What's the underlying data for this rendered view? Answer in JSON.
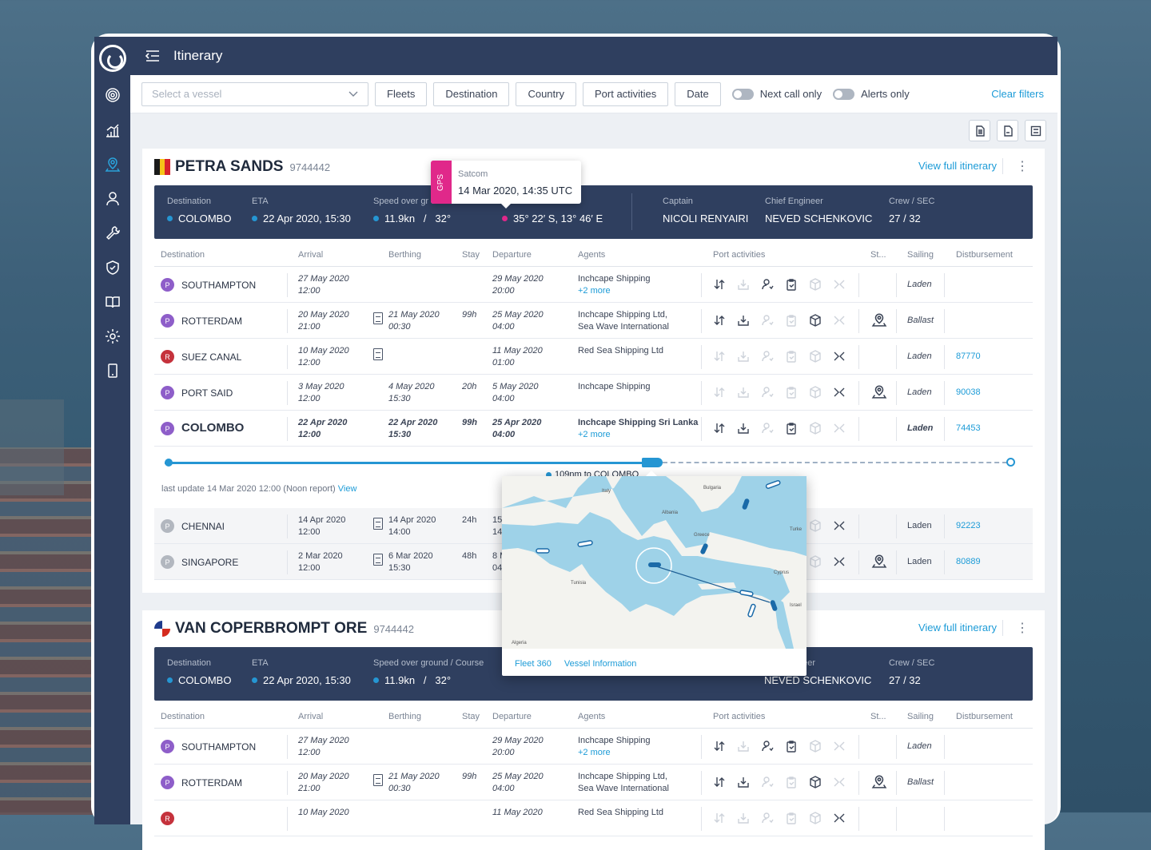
{
  "app": {
    "title": "Itinerary"
  },
  "filters": {
    "vessel_placeholder": "Select a vessel",
    "buttons": [
      "Fleets",
      "Destination",
      "Country",
      "Port activities",
      "Date"
    ],
    "toggles": [
      "Next call only",
      "Alerts only"
    ],
    "clear": "Clear filters"
  },
  "colors": {
    "navy": "#2f3f5f",
    "accent": "#1c9bd7",
    "gps": "#e0288a",
    "purple_badge": "#8e5ec9",
    "red_badge": "#c5323c"
  },
  "columns": [
    "Destination",
    "Arrival",
    "Berthing",
    "Stay",
    "Departure",
    "Agents",
    "Port activities",
    "St...",
    "Sailing",
    "Distbursement"
  ],
  "vessel1": {
    "name": "PETRA SANDS",
    "imo": "9744442",
    "flag": "belgium-flag",
    "view_full": "View full itinerary",
    "summary": {
      "destination_label": "Destination",
      "destination": "COLOMBO",
      "eta_label": "ETA",
      "eta": "22 Apr 2020, 15:30",
      "speed_label": "Speed over gr",
      "speed": "11.9kn",
      "sep": "/",
      "course": "32°",
      "position": "35° 22′ S, 13° 46′ E",
      "captain_label": "Captain",
      "captain": "NICOLI RENYAIRI",
      "chief_label": "Chief Engineer",
      "chief": "NEVED SCHENKOVIC",
      "crew_label": "Crew / SEC",
      "crew": "27 / 32"
    },
    "tooltip": {
      "badge": "GPS",
      "source": "Satcom",
      "time": "14 Mar 2020, 14:35 UTC"
    },
    "rows": [
      {
        "badge": "P",
        "port": "SOUTHAMPTON",
        "arr_d": "27 May 2020",
        "arr_t": "12:00",
        "berth_d": "",
        "berth_t": "",
        "stay": "",
        "dep_d": "29 May 2020",
        "dep_t": "20:00",
        "agent1": "Inchcape Shipping",
        "agent2": "+2 more",
        "sailing": "Laden",
        "disb": ""
      },
      {
        "badge": "P",
        "port": "ROTTERDAM",
        "arr_d": "20 May 2020",
        "arr_t": "21:00",
        "berth_d": "21 May 2020",
        "berth_t": "00:30",
        "stay": "99h",
        "dep_d": "25 May 2020",
        "dep_t": "04:00",
        "agent1": "Inchcape Shipping Ltd,",
        "agent2": "Sea Wave International",
        "sailing": "Ballast",
        "disb": ""
      },
      {
        "badge": "R",
        "port": "SUEZ CANAL",
        "arr_d": "10 May 2020",
        "arr_t": "12:00",
        "berth_d": "",
        "berth_t": "",
        "stay": "",
        "dep_d": "11 May 2020",
        "dep_t": "01:00",
        "agent1": "Red Sea Shipping Ltd",
        "agent2": "",
        "sailing": "Laden",
        "disb": "87770"
      },
      {
        "badge": "P",
        "port": "PORT SAID",
        "arr_d": "3 May 2020",
        "arr_t": "12:00",
        "berth_d": "4 May 2020",
        "berth_t": "15:30",
        "stay": "20h",
        "dep_d": "5 May 2020",
        "dep_t": "04:00",
        "agent1": "Inchcape Shipping",
        "agent2": "",
        "sailing": "Laden",
        "disb": "90038"
      },
      {
        "badge": "P",
        "port": "COLOMBO",
        "arr_d": "22 Apr 2020",
        "arr_t": "12:00",
        "berth_d": "22 Apr 2020",
        "berth_t": "15:30",
        "stay": "99h",
        "dep_d": "25 Apr 2020",
        "dep_t": "04:00",
        "agent1": "Inchcape Shipping Sri Lanka",
        "agent2": "+2 more",
        "sailing": "Laden",
        "disb": "74453"
      },
      {
        "badge": "P",
        "port": "CHENNAI",
        "arr_d": "14 Apr 2020",
        "arr_t": "12:00",
        "berth_d": "14 Apr 2020",
        "berth_t": "14:00",
        "stay": "24h",
        "dep_d": "15",
        "dep_t": "14",
        "agent1": "",
        "agent2": "",
        "sailing": "Laden",
        "disb": "92223"
      },
      {
        "badge": "P",
        "port": "SINGAPORE",
        "arr_d": "2 Mar 2020",
        "arr_t": "12:00",
        "berth_d": "6 Mar 2020",
        "berth_t": "15:30",
        "stay": "48h",
        "dep_d": "8 M",
        "dep_t": "04",
        "agent1": "",
        "agent2": "",
        "sailing": "Laden",
        "disb": "80889"
      }
    ],
    "progress": {
      "distance": "109nm to COLOMBO",
      "fraction": 0.58
    },
    "last_update": "last update 14 Mar 2020 12:00 (Noon report)",
    "view": "View"
  },
  "map": {
    "labels": [
      "Italy",
      "Bulgaria",
      "Albania",
      "Greece",
      "Turke",
      "Tunisia",
      "Cyprus",
      "Israel",
      "Algeria"
    ],
    "links": [
      "Fleet 360",
      "Vessel Information"
    ]
  },
  "vessel2": {
    "name": "VAN COPERBROMPT ORE",
    "imo": "9744442",
    "flag": "panama-flag",
    "view_full": "View full itinerary",
    "summary": {
      "destination_label": "Destination",
      "destination": "COLOMBO",
      "eta_label": "ETA",
      "eta": "22 Apr 2020, 15:30",
      "speed_label": "Speed over ground / Course",
      "speed": "11.9kn",
      "sep": "/",
      "course": "32°",
      "chief_label_partial": "neer",
      "chief": "NEVED SCHENKOVIC",
      "crew_label": "Crew / SEC",
      "crew": "27 / 32"
    },
    "rows": [
      {
        "badge": "P",
        "port": "SOUTHAMPTON",
        "arr_d": "27 May 2020",
        "arr_t": "12:00",
        "dep_d": "29 May 2020",
        "dep_t": "20:00",
        "agent1": "Inchcape Shipping",
        "agent2": "+2 more",
        "sailing": "Laden"
      },
      {
        "badge": "P",
        "port": "ROTTERDAM",
        "arr_d": "20 May 2020",
        "arr_t": "21:00",
        "berth_d": "21 May 2020",
        "berth_t": "00:30",
        "stay": "99h",
        "dep_d": "25 May 2020",
        "dep_t": "04:00",
        "agent1": "Inchcape Shipping Ltd,",
        "agent2": "Sea Wave International",
        "sailing": "Ballast"
      },
      {
        "badge": "R",
        "port": "",
        "arr_d": "10 May 2020",
        "dep_d": "11 May 2020",
        "agent1": "Red Sea Shipping Ltd"
      }
    ]
  }
}
